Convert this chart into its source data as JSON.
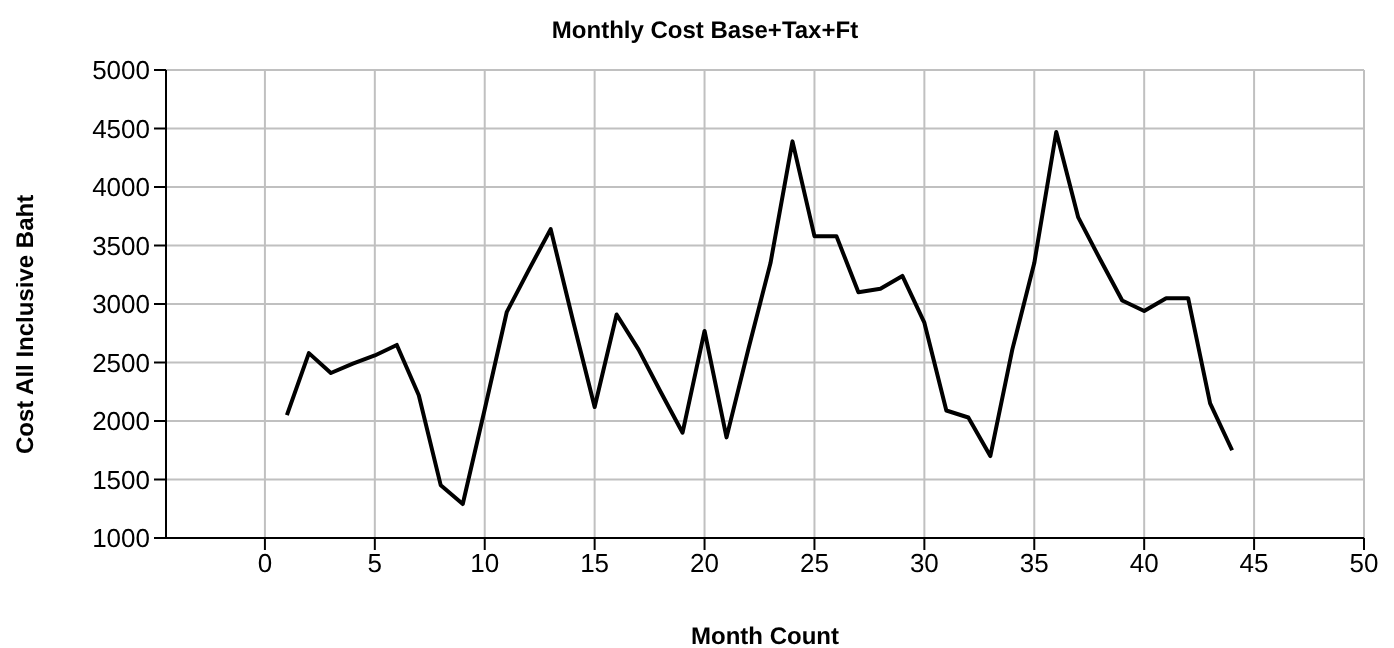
{
  "chart_data": {
    "type": "line",
    "title": "Monthly Cost Base+Tax+Ft",
    "xlabel": "Month Count",
    "ylabel": "Cost All Inclusive Baht",
    "x": [
      1,
      2,
      3,
      4,
      5,
      6,
      7,
      8,
      9,
      10,
      11,
      12,
      13,
      14,
      15,
      16,
      17,
      18,
      19,
      20,
      21,
      22,
      23,
      24,
      25,
      26,
      27,
      28,
      29,
      30,
      31,
      32,
      33,
      34,
      35,
      36,
      37,
      38,
      39,
      40,
      41,
      42,
      43,
      44
    ],
    "series": [
      {
        "color": "#000000",
        "values": [
          2050,
          2580,
          2410,
          2490,
          2560,
          2650,
          2220,
          1450,
          1290,
          2100,
          2930,
          3290,
          3640,
          2870,
          2120,
          2910,
          2610,
          2250,
          1900,
          2770,
          1860,
          2620,
          3350,
          4390,
          3580,
          3580,
          3100,
          3130,
          3240,
          2840,
          2090,
          2030,
          1700,
          2610,
          3350,
          4470,
          3740,
          3380,
          3030,
          2940,
          3050,
          3050,
          2150,
          1750
        ]
      }
    ],
    "xlim": [
      -4.5,
      50
    ],
    "xticks": [
      0,
      5,
      10,
      15,
      20,
      25,
      30,
      35,
      40,
      45,
      50
    ],
    "ylim": [
      1000,
      5000
    ],
    "yticks": [
      1000,
      1500,
      2000,
      2500,
      3000,
      3500,
      4000,
      4500,
      5000
    ],
    "grid": true,
    "legend": false,
    "marker": "none",
    "line_style": "solid"
  }
}
